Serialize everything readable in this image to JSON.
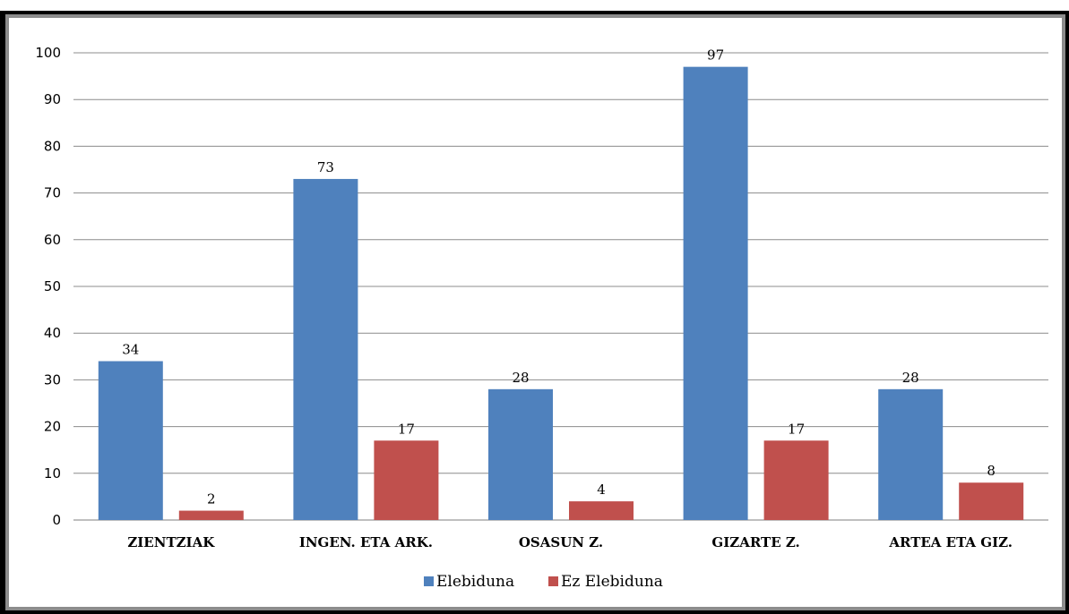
{
  "chart_data": {
    "type": "bar",
    "title": "",
    "xlabel": "",
    "ylabel": "",
    "categories": [
      "ZIENTZIAK",
      "INGEN. ETA ARK.",
      "OSASUN Z.",
      "GIZARTE Z.",
      "ARTEA ETA GIZ."
    ],
    "series": [
      {
        "name": "Elebiduna",
        "color": "#4F81BD",
        "values": [
          34,
          73,
          28,
          97,
          28
        ]
      },
      {
        "name": "Ez Elebiduna",
        "color": "#C0504D",
        "values": [
          2,
          17,
          4,
          17,
          8
        ]
      }
    ],
    "ylim": [
      0,
      100
    ],
    "yticks": [
      0,
      10,
      20,
      30,
      40,
      50,
      60,
      70,
      80,
      90,
      100
    ],
    "grid": true,
    "legend_position": "bottom",
    "data_labels": true
  }
}
